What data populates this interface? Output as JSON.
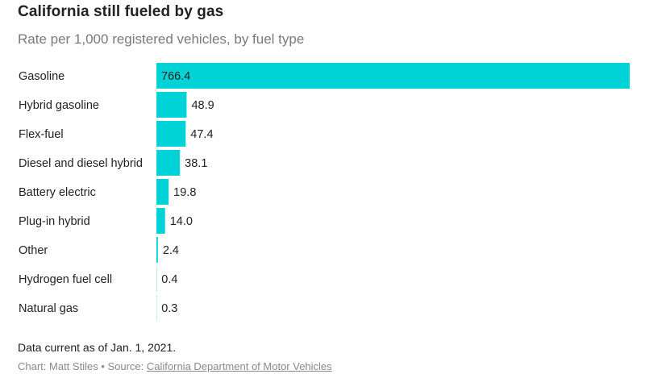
{
  "header": {
    "title": "California still fueled by gas",
    "subtitle": "Rate per 1,000 registered vehicles, by fuel type"
  },
  "footer": {
    "note": "Data current as of Jan. 1, 2021.",
    "credit_prefix": "Chart: Matt Stiles • Source: ",
    "source_link": "California Department of Motor Vehicles"
  },
  "colors": {
    "bar": "#00d3d8",
    "label_text": "#222222"
  },
  "chart_data": {
    "type": "bar",
    "orientation": "horizontal",
    "title": "California still fueled by gas",
    "subtitle": "Rate per 1,000 registered vehicles, by fuel type",
    "categories": [
      "Gasoline",
      "Hybrid gasoline",
      "Flex-fuel",
      "Diesel and diesel hybrid",
      "Battery electric",
      "Plug-in hybrid",
      "Other",
      "Hydrogen fuel cell",
      "Natural gas"
    ],
    "values": [
      766.4,
      48.9,
      47.4,
      38.1,
      19.8,
      14.0,
      2.4,
      0.4,
      0.3
    ],
    "value_labels": [
      "766.4",
      "48.9",
      "47.4",
      "38.1",
      "19.8",
      "14.0",
      "2.4",
      "0.4",
      "0.3"
    ],
    "xlim": [
      0,
      766.4
    ],
    "grid": false,
    "legend": "none"
  }
}
